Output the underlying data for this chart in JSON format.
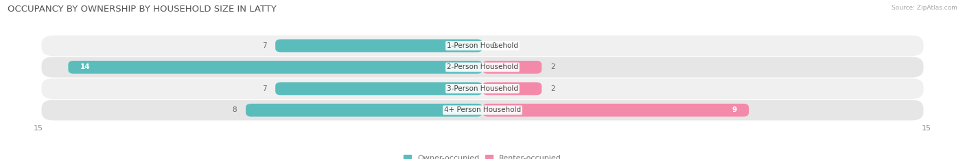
{
  "title": "OCCUPANCY BY OWNERSHIP BY HOUSEHOLD SIZE IN LATTY",
  "source": "Source: ZipAtlas.com",
  "categories": [
    "1-Person Household",
    "2-Person Household",
    "3-Person Household",
    "4+ Person Household"
  ],
  "owner_values": [
    7,
    14,
    7,
    8
  ],
  "renter_values": [
    0,
    2,
    2,
    9
  ],
  "owner_color": "#5bbcbc",
  "renter_color": "#f48aaa",
  "row_bg_colors": [
    "#f0f0f0",
    "#e6e6e6",
    "#f0f0f0",
    "#e6e6e6"
  ],
  "x_max": 15,
  "label_fontsize": 7.5,
  "title_fontsize": 9.5,
  "axis_label_fontsize": 8,
  "legend_fontsize": 8
}
